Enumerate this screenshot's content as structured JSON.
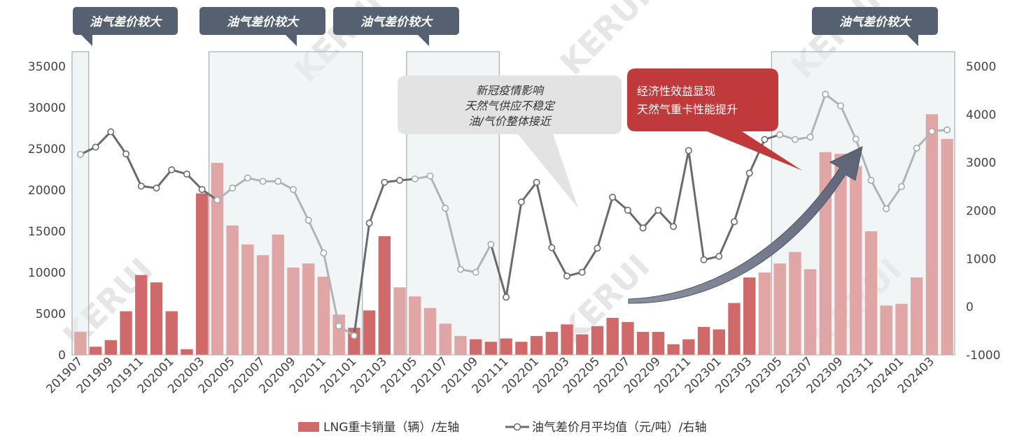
{
  "chart_data": {
    "type": "bar+line",
    "categories": [
      "201907",
      "201908",
      "201909",
      "201910",
      "201911",
      "201912",
      "202001",
      "202002",
      "202003",
      "202004",
      "202005",
      "202006",
      "202007",
      "202008",
      "202009",
      "202010",
      "202011",
      "202012",
      "202101",
      "202102",
      "202103",
      "202104",
      "202105",
      "202106",
      "202107",
      "202108",
      "202109",
      "202110",
      "202111",
      "202112",
      "202201",
      "202202",
      "202203",
      "202204",
      "202205",
      "202206",
      "202207",
      "202208",
      "202209",
      "202210",
      "202211",
      "202212",
      "202301",
      "202302",
      "202303",
      "202304",
      "202305",
      "202306",
      "202307",
      "202308",
      "202309",
      "202310",
      "202311",
      "202312",
      "202401",
      "202402",
      "202403",
      "202404"
    ],
    "x_tick_labels": [
      "201907",
      "201909",
      "201911",
      "202001",
      "202003",
      "202005",
      "202007",
      "202009",
      "202011",
      "202101",
      "202103",
      "202105",
      "202107",
      "202109",
      "202111",
      "202201",
      "202203",
      "202205",
      "202207",
      "202209",
      "202211",
      "202301",
      "202303",
      "202305",
      "202307",
      "202309",
      "202311",
      "202401",
      "202403"
    ],
    "series": [
      {
        "name": "LNG重卡销量（辆）/左轴",
        "type": "bar",
        "axis": "left",
        "color": "#d06a6a",
        "values": [
          2800,
          1000,
          1800,
          5300,
          9700,
          8800,
          5300,
          700,
          19600,
          23300,
          15700,
          13400,
          12100,
          14600,
          10600,
          11100,
          9500,
          4900,
          3300,
          5400,
          14400,
          8200,
          7100,
          5700,
          3800,
          2300,
          1900,
          1600,
          2000,
          1600,
          2300,
          2800,
          3700,
          2500,
          3500,
          4500,
          4000,
          2800,
          2800,
          1300,
          1900,
          3400,
          3100,
          6300,
          9400,
          10000,
          11100,
          12500,
          10400,
          24600,
          24400,
          22900,
          15000,
          6000,
          6200,
          9400,
          29200,
          26200
        ]
      },
      {
        "name": "油气差价月平均值（元/吨）/右轴",
        "type": "line",
        "axis": "right",
        "color": "#6b6b6b",
        "values": [
          3170,
          3320,
          3640,
          3180,
          2510,
          2470,
          2850,
          2760,
          2440,
          2220,
          2470,
          2680,
          2610,
          2610,
          2440,
          1800,
          1120,
          -400,
          -600,
          1740,
          2590,
          2630,
          2660,
          2720,
          2050,
          780,
          720,
          1300,
          200,
          2180,
          2590,
          1230,
          640,
          720,
          1220,
          2280,
          2010,
          1640,
          2010,
          1670,
          3250,
          980,
          1050,
          1770,
          2780,
          3480,
          3580,
          3480,
          3530,
          4420,
          4180,
          3490,
          2630,
          2040,
          2500,
          3300,
          3650,
          3680
        ]
      }
    ],
    "ylim_left": [
      0,
      35000
    ],
    "yticks_left": [
      0,
      5000,
      10000,
      15000,
      20000,
      25000,
      30000,
      35000
    ],
    "ylim_right": [
      -1000,
      5000
    ],
    "yticks_right": [
      -1000,
      0,
      1000,
      2000,
      3000,
      4000,
      5000
    ],
    "light_bar_ranges": [
      [
        0,
        0
      ],
      [
        9,
        17
      ],
      [
        21,
        25
      ],
      [
        45,
        57
      ]
    ],
    "shaded_regions": [
      [
        0,
        0
      ],
      [
        9,
        18
      ],
      [
        22,
        27
      ],
      [
        46,
        58
      ]
    ],
    "highlight_color": "#c0393b",
    "legend_position": "bottom"
  },
  "tags": [
    {
      "text": "油气差价较大"
    },
    {
      "text": "油气差价较大"
    },
    {
      "text": "油气差价较大"
    },
    {
      "text": "油气差价较大"
    }
  ],
  "callout_grey": {
    "lines": [
      "新冠疫情影响",
      "天然气供应不稳定",
      "油/气价整体接近"
    ]
  },
  "callout_red": {
    "lines": [
      "经济性效益显现",
      "天然气重卡性能提升"
    ]
  }
}
